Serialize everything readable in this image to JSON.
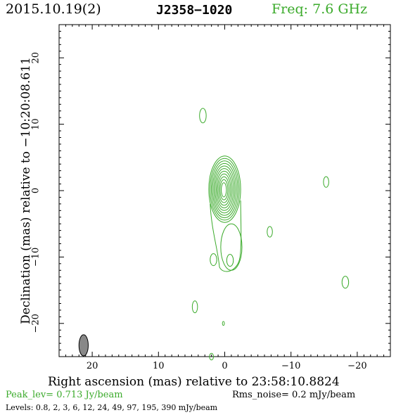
{
  "header": {
    "date": "2015.10.19(2)",
    "source": "J2358−1020",
    "freq_label": "Freq: 7.6 GHz"
  },
  "footer": {
    "peak_label": "Peak_lev=  0.713 Jy/beam",
    "rms_label": "Rms_noise=  0.2 mJy/beam",
    "levels_label": "Levels: 0.8,   2,   3,   6,  12,  24,  49,  97, 195, 390 mJy/beam"
  },
  "colors": {
    "contour": "#3aaa2a",
    "accent": "#3aaa2a",
    "axes": "#000000",
    "beam_fill": "#888888"
  },
  "chart_data": {
    "type": "contour",
    "xlabel": "Right ascension (mas) relative to 23:58:10.8824",
    "ylabel": "Declination (mas) relative to −10:20:08.611",
    "xlim": [
      25,
      -25
    ],
    "ylim": [
      -25,
      25
    ],
    "x_ticks": [
      20,
      10,
      0,
      -10,
      -20
    ],
    "x_tick_labels": [
      "20",
      "10",
      "0",
      "−10",
      "−20"
    ],
    "y_ticks": [
      20,
      10,
      0,
      -10,
      -20
    ],
    "y_tick_labels": [
      "20",
      "10",
      "0",
      "−10",
      "−20"
    ],
    "levels_mJy_per_beam": [
      0.8,
      2,
      3,
      6,
      12,
      24,
      49,
      97,
      195,
      390
    ],
    "peak_Jy_per_beam": 0.713,
    "rms_mJy_per_beam": 0.2,
    "core": {
      "x": 0,
      "y": 0,
      "nested_levels": 11,
      "outer_half_width": 2.4,
      "outer_half_height": 5.0
    },
    "jet": [
      {
        "x": -1.0,
        "y": -8.5,
        "rx": 1.6,
        "ry": 3.5
      },
      {
        "x": -0.8,
        "y": -10.5,
        "rx": 0.5,
        "ry": 0.9
      }
    ],
    "islands": [
      {
        "x": 3.3,
        "y": 11.3,
        "rx": 0.5,
        "ry": 1.1
      },
      {
        "x": -6.8,
        "y": -6.2,
        "rx": 0.4,
        "ry": 0.8
      },
      {
        "x": 1.7,
        "y": -10.4,
        "rx": 0.5,
        "ry": 0.9
      },
      {
        "x": -15.3,
        "y": 1.3,
        "rx": 0.4,
        "ry": 0.8
      },
      {
        "x": -18.2,
        "y": -13.8,
        "rx": 0.5,
        "ry": 0.9
      },
      {
        "x": 4.5,
        "y": -17.5,
        "rx": 0.4,
        "ry": 0.9
      },
      {
        "x": 0.2,
        "y": -20.0,
        "rx": 0.15,
        "ry": 0.3
      },
      {
        "x": 2.0,
        "y": -25.0,
        "rx": 0.3,
        "ry": 0.5
      }
    ],
    "beam": {
      "x": 21.3,
      "y": -23.3,
      "major": 3.2,
      "minor": 1.4,
      "pa_deg": 0
    }
  }
}
